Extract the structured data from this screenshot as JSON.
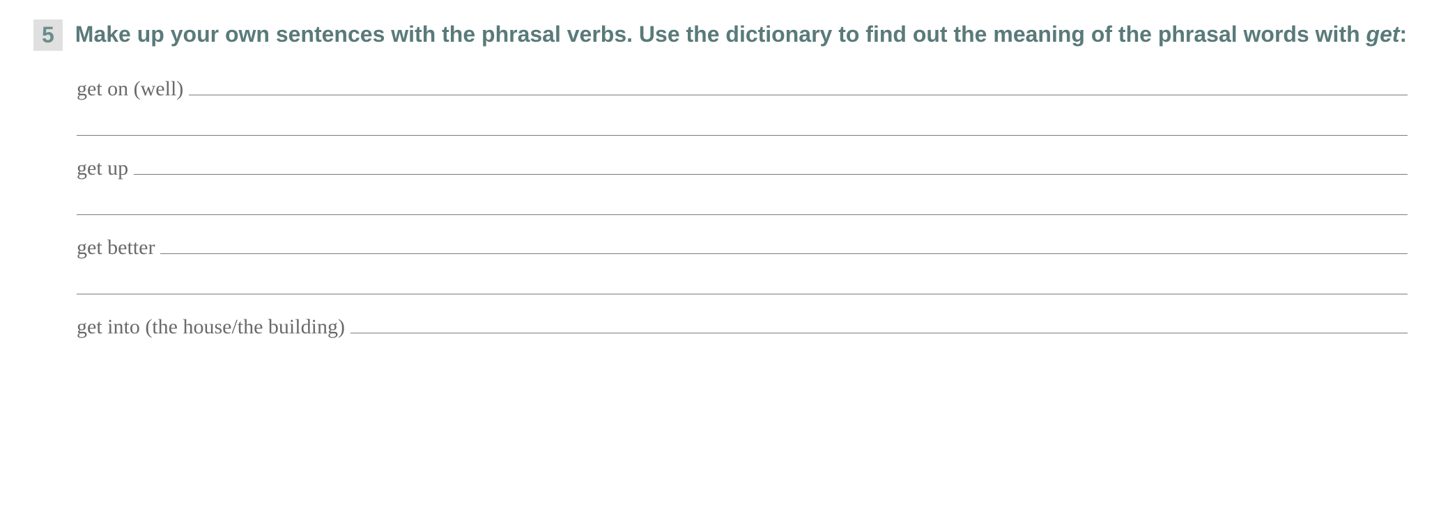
{
  "exercise": {
    "number": "5",
    "instruction_part1": "Make up your own sentences with the phrasal verbs. Use the dictionary to find out the meaning of the phrasal words with ",
    "instruction_italic": "get",
    "instruction_part2": ":"
  },
  "phrasals": {
    "item1": {
      "label": "get on (well)"
    },
    "item2": {
      "label": "get up"
    },
    "item3": {
      "label": "get better"
    },
    "item4": {
      "label": "get into (the house/the building)"
    }
  },
  "style": {
    "background_color": "#ffffff",
    "number_bg": "#e0e0e0",
    "number_color": "#6b8c8c",
    "instruction_color": "#5a7a7a",
    "label_color": "#6a6a6a",
    "line_color": "#7a7a7a",
    "instruction_fontsize": 32,
    "label_fontsize": 30
  }
}
